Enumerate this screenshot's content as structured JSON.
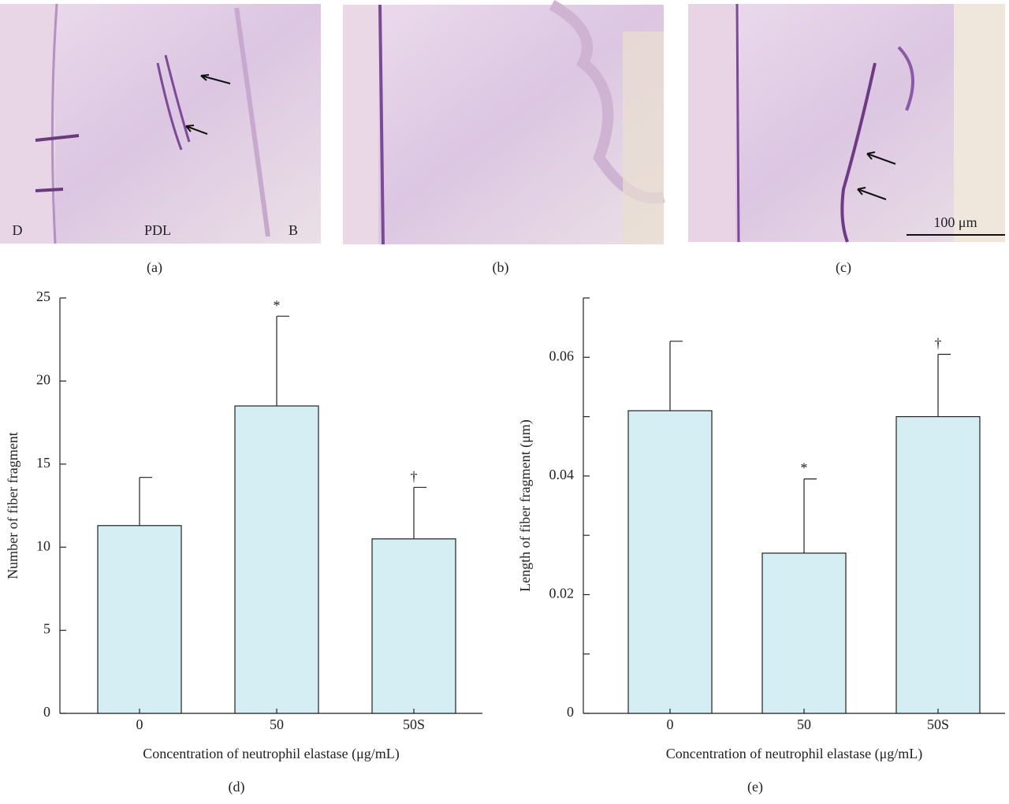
{
  "images": [
    {
      "label": "(a)",
      "annotations": [
        "D",
        "PDL",
        "B"
      ]
    },
    {
      "label": "(b)"
    },
    {
      "label": "(c)",
      "scale_bar": "100 μm"
    }
  ],
  "chart_data": [
    {
      "type": "bar",
      "panel": "(d)",
      "categories": [
        "0",
        "50",
        "50S"
      ],
      "values": [
        11.3,
        18.5,
        10.5
      ],
      "errors": [
        2.9,
        5.4,
        3.1
      ],
      "annotations": [
        null,
        "*",
        "†"
      ],
      "color": "#d4eef3",
      "xlabel": "Concentration of neutrophil elastase (μg/mL)",
      "ylabel": "Number of fiber fragment",
      "ylim": [
        0,
        25
      ],
      "yticks": [
        0,
        5,
        10,
        15,
        20,
        25
      ]
    },
    {
      "type": "bar",
      "panel": "(e)",
      "categories": [
        "0",
        "50",
        "50S"
      ],
      "values": [
        0.051,
        0.027,
        0.05
      ],
      "errors": [
        0.0117,
        0.0125,
        0.0105
      ],
      "annotations": [
        null,
        "*",
        "†"
      ],
      "color": "#d4eef3",
      "xlabel": "Concentration of neutrophil elastase (μg/mL)",
      "ylabel": "Length of fiber fragment (μm)",
      "ylim": [
        0,
        0.07
      ],
      "yticks": [
        0,
        0.02,
        0.04,
        0.06
      ],
      "minor_yticks": [
        0.01,
        0.03,
        0.05,
        0.07
      ]
    }
  ]
}
